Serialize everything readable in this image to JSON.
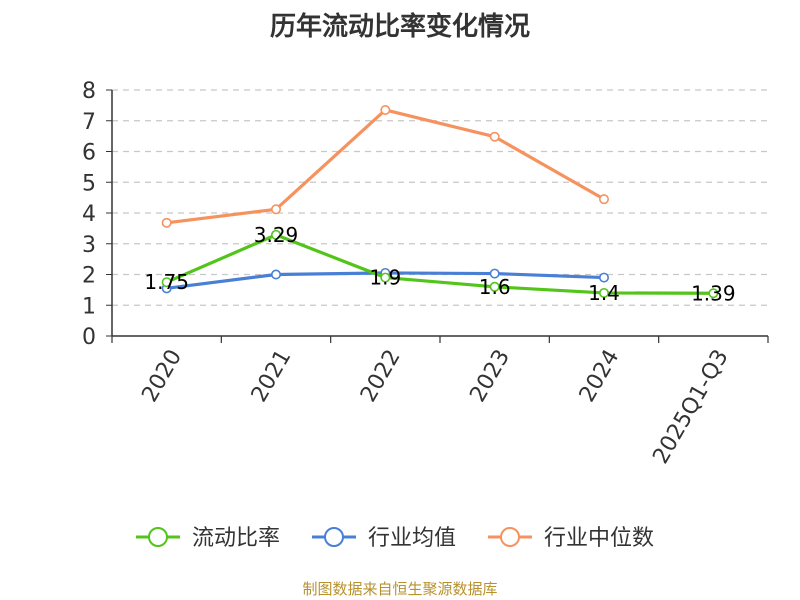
{
  "chart_data": {
    "type": "line",
    "title": "历年流动比率变化情况",
    "categories": [
      "2020",
      "2021",
      "2022",
      "2023",
      "2024",
      "2025Q1-Q3"
    ],
    "ylim": [
      0,
      8
    ],
    "yticks": [
      "0",
      "1",
      "2",
      "3",
      "4",
      "5",
      "6",
      "7",
      "8"
    ],
    "grid": true,
    "legend_position": "bottom",
    "series": [
      {
        "name": "流动比率",
        "color": "#52c41a",
        "values": [
          1.75,
          3.29,
          1.9,
          1.6,
          1.4,
          1.39
        ],
        "labels": [
          "1.75",
          "3.29",
          "1.9",
          "1.6",
          "1.4",
          "1.39"
        ]
      },
      {
        "name": "行业均值",
        "color": "#4a7fd6",
        "values": [
          1.55,
          2.0,
          2.05,
          2.03,
          1.9,
          null
        ]
      },
      {
        "name": "行业中位数",
        "color": "#f5925e",
        "values": [
          3.68,
          4.12,
          7.35,
          6.48,
          4.45,
          null
        ]
      }
    ]
  },
  "source": "制图数据来自恒生聚源数据库"
}
